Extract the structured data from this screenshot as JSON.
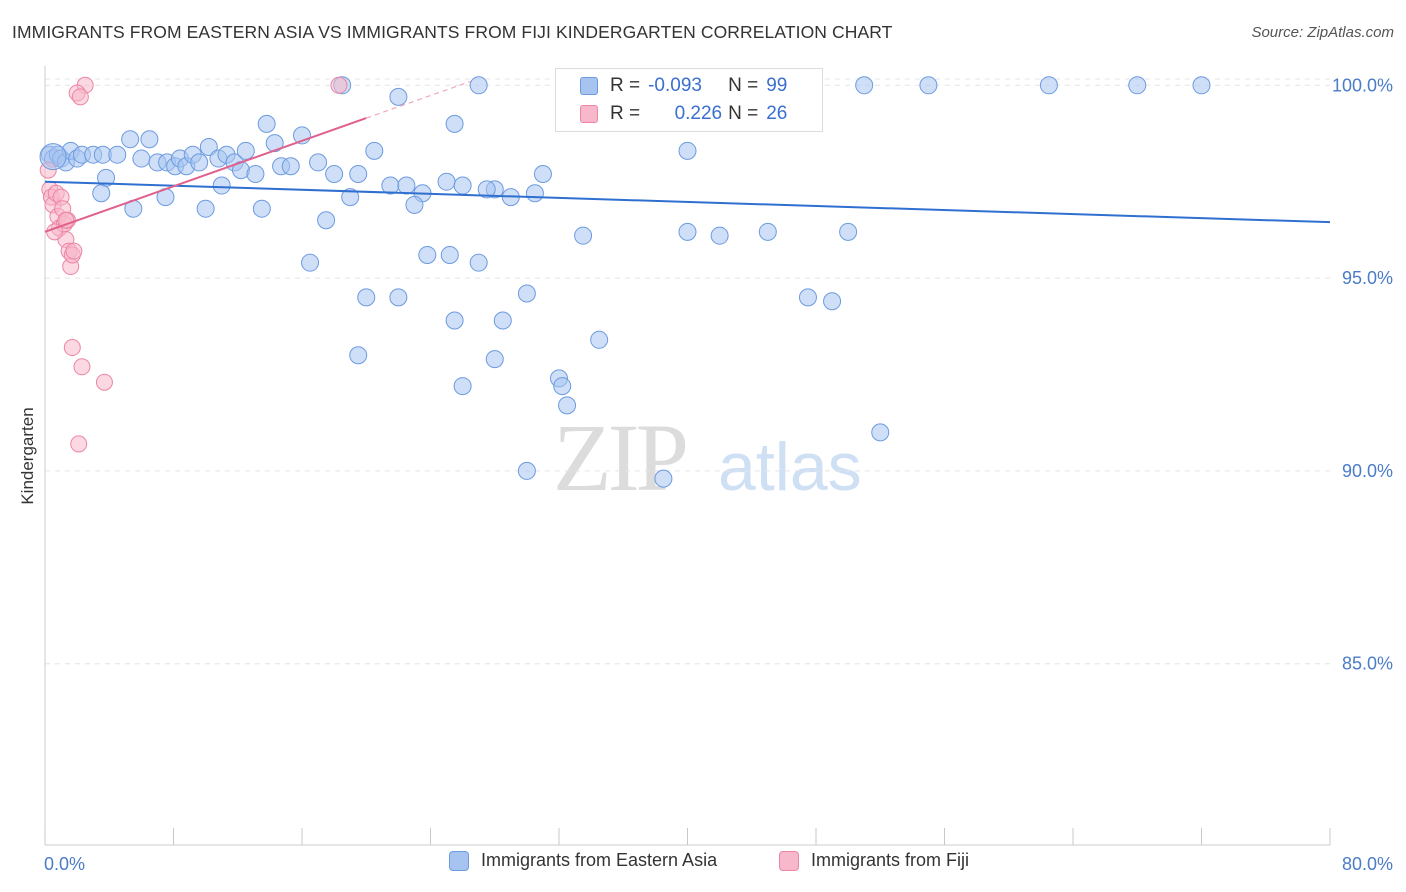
{
  "title": "IMMIGRANTS FROM EASTERN ASIA VS IMMIGRANTS FROM FIJI KINDERGARTEN CORRELATION CHART",
  "source": "Source: ZipAtlas.com",
  "watermark": {
    "zip": "ZIP",
    "atlas": "atlas"
  },
  "legend_top": {
    "rows": [
      {
        "r_label": "R =",
        "r_value": "-0.093",
        "n_label": "N =",
        "n_value": "99",
        "color": "#a7c4f0",
        "border": "#6c9be0"
      },
      {
        "r_label": "R =",
        "r_value": "0.226",
        "n_label": "N =",
        "n_value": "26",
        "color": "#f8b8cb",
        "border": "#ec86a4"
      }
    ]
  },
  "chart_data": {
    "type": "scatter",
    "title": "IMMIGRANTS FROM EASTERN ASIA VS IMMIGRANTS FROM FIJI KINDERGARTEN CORRELATION CHART",
    "xlabel": "",
    "ylabel": "Kindergarten",
    "xlim": [
      0,
      80
    ],
    "ylim": [
      80.3,
      100.5
    ],
    "x_tick_labels": [
      "0.0%",
      "80.0%"
    ],
    "y_ticks": [
      85,
      90,
      95,
      100
    ],
    "y_tick_labels": [
      "85.0%",
      "90.0%",
      "95.0%",
      "100.0%"
    ],
    "grid": true,
    "legend": "bottom",
    "series": [
      {
        "name": "Immigrants from Eastern Asia",
        "color": "#a7c4f0",
        "edge": "#6c9be0",
        "line_color": "#2f6fd0",
        "trend": {
          "x": [
            0,
            80
          ],
          "y": [
            97.5,
            96.45
          ]
        },
        "points": [
          [
            0.3,
            98.2
          ],
          [
            0.5,
            98.1
          ],
          [
            0.8,
            98.2
          ],
          [
            1.0,
            98.1
          ],
          [
            1.3,
            98.0
          ],
          [
            1.6,
            98.3
          ],
          [
            2.0,
            98.1
          ],
          [
            2.3,
            98.2
          ],
          [
            3.0,
            98.2
          ],
          [
            3.6,
            98.2
          ],
          [
            4.5,
            98.2
          ],
          [
            5.3,
            98.6
          ],
          [
            6.0,
            98.1
          ],
          [
            6.5,
            98.6
          ],
          [
            7.0,
            98.0
          ],
          [
            7.6,
            98.0
          ],
          [
            8.1,
            97.9
          ],
          [
            8.4,
            98.1
          ],
          [
            8.8,
            97.9
          ],
          [
            9.2,
            98.2
          ],
          [
            9.6,
            98.0
          ],
          [
            10.2,
            98.4
          ],
          [
            10.8,
            98.1
          ],
          [
            11.3,
            98.2
          ],
          [
            11.8,
            98.0
          ],
          [
            12.2,
            97.8
          ],
          [
            12.5,
            98.3
          ],
          [
            13.1,
            97.7
          ],
          [
            13.8,
            99.0
          ],
          [
            14.3,
            98.5
          ],
          [
            14.7,
            97.9
          ],
          [
            15.3,
            97.9
          ],
          [
            16.0,
            98.7
          ],
          [
            17.0,
            98.0
          ],
          [
            18.0,
            97.7
          ],
          [
            18.5,
            100.0
          ],
          [
            19.5,
            97.7
          ],
          [
            20.5,
            98.3
          ],
          [
            21.5,
            97.4
          ],
          [
            22.0,
            99.7
          ],
          [
            23.5,
            97.2
          ],
          [
            25.5,
            99.0
          ],
          [
            27.0,
            100.0
          ],
          [
            28.0,
            97.3
          ],
          [
            29.0,
            97.1
          ],
          [
            30.5,
            97.2
          ],
          [
            31.0,
            97.7
          ],
          [
            33.5,
            96.1
          ],
          [
            34.5,
            100.0
          ],
          [
            35.5,
            100.0
          ],
          [
            36.5,
            100.0
          ],
          [
            38.0,
            100.0
          ],
          [
            40.0,
            98.3
          ],
          [
            42.0,
            96.1
          ],
          [
            43.0,
            100.0
          ],
          [
            46.0,
            100.0
          ],
          [
            47.5,
            94.5
          ],
          [
            51.0,
            100.0
          ],
          [
            55.0,
            100.0
          ],
          [
            62.5,
            100.0
          ],
          [
            68.0,
            100.0
          ],
          [
            72.0,
            100.0
          ],
          [
            3.8,
            97.6
          ],
          [
            3.5,
            97.2
          ],
          [
            5.5,
            96.8
          ],
          [
            7.5,
            97.1
          ],
          [
            10.0,
            96.8
          ],
          [
            11.0,
            97.4
          ],
          [
            13.5,
            96.8
          ],
          [
            17.5,
            96.5
          ],
          [
            19.0,
            97.1
          ],
          [
            22.5,
            97.4
          ],
          [
            23.0,
            96.9
          ],
          [
            25.0,
            97.5
          ],
          [
            26.0,
            97.4
          ],
          [
            27.5,
            97.3
          ],
          [
            16.5,
            95.4
          ],
          [
            20.0,
            94.5
          ],
          [
            22.0,
            94.5
          ],
          [
            23.8,
            95.6
          ],
          [
            25.2,
            95.6
          ],
          [
            27.0,
            95.4
          ],
          [
            30.0,
            94.6
          ],
          [
            25.5,
            93.9
          ],
          [
            28.5,
            93.9
          ],
          [
            19.5,
            93.0
          ],
          [
            28.0,
            92.9
          ],
          [
            26.0,
            92.2
          ],
          [
            32.0,
            92.4
          ],
          [
            32.2,
            92.2
          ],
          [
            32.5,
            91.7
          ],
          [
            34.5,
            93.4
          ],
          [
            30.0,
            90.0
          ],
          [
            38.5,
            89.8
          ],
          [
            52.0,
            91.0
          ],
          [
            49.0,
            94.4
          ],
          [
            40.0,
            96.2
          ],
          [
            50.0,
            96.2
          ],
          [
            45.0,
            96.2
          ]
        ]
      },
      {
        "name": "Immigrants from Fiji",
        "color": "#f8b8cb",
        "edge": "#ec86a4",
        "line_color": "#e0608e",
        "trend": {
          "x": [
            0,
            20
          ],
          "y": [
            96.2,
            99.15
          ]
        },
        "trend_dashed": {
          "x": [
            20,
            26.5
          ],
          "y": [
            99.15,
            100.1
          ]
        },
        "points": [
          [
            0.2,
            97.8
          ],
          [
            0.3,
            97.3
          ],
          [
            0.4,
            97.1
          ],
          [
            0.5,
            96.9
          ],
          [
            0.7,
            97.2
          ],
          [
            0.8,
            96.6
          ],
          [
            0.9,
            96.3
          ],
          [
            1.0,
            97.1
          ],
          [
            1.1,
            96.8
          ],
          [
            1.2,
            96.4
          ],
          [
            1.3,
            96.0
          ],
          [
            1.4,
            96.5
          ],
          [
            1.5,
            95.7
          ],
          [
            1.6,
            95.3
          ],
          [
            1.7,
            95.6
          ],
          [
            1.8,
            95.7
          ],
          [
            2.5,
            100.0
          ],
          [
            2.0,
            99.8
          ],
          [
            2.2,
            99.7
          ],
          [
            18.3,
            100.0
          ],
          [
            1.7,
            93.2
          ],
          [
            2.3,
            92.7
          ],
          [
            3.7,
            92.3
          ],
          [
            2.1,
            90.7
          ],
          [
            0.6,
            96.2
          ],
          [
            1.3,
            96.5
          ]
        ]
      }
    ]
  }
}
